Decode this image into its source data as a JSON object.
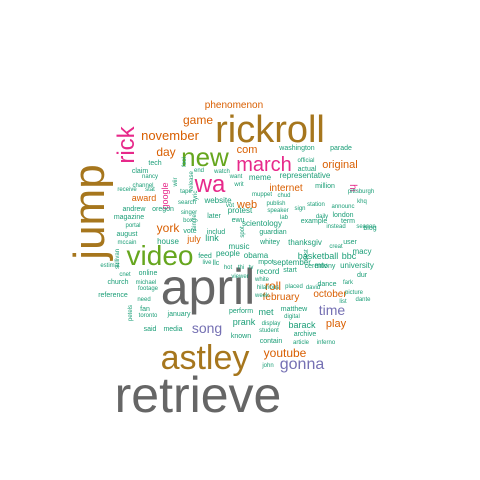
{
  "palette": {
    "gray": "#666666",
    "gold": "#a6761d",
    "green": "#66a61e",
    "magenta": "#e7298a",
    "orange": "#d95f02",
    "purple": "#7570b3",
    "teal": "#1b9e77"
  },
  "words": [
    {
      "text": "retrieve",
      "color": "gray"
    },
    {
      "text": "april",
      "color": "gray"
    },
    {
      "text": "astley",
      "color": "gold"
    },
    {
      "text": "jump",
      "color": "gold"
    },
    {
      "text": "rickroll",
      "color": "gold"
    },
    {
      "text": "video",
      "color": "green"
    },
    {
      "text": "new",
      "color": "green"
    },
    {
      "text": "wa",
      "color": "magenta"
    },
    {
      "text": "rick",
      "color": "magenta"
    },
    {
      "text": "march",
      "color": "magenta"
    },
    {
      "text": "gonna",
      "color": "purple"
    },
    {
      "text": "song",
      "color": "purple"
    },
    {
      "text": "time",
      "color": "purple"
    },
    {
      "text": "youtube",
      "color": "orange"
    },
    {
      "text": "november",
      "color": "orange"
    },
    {
      "text": "game",
      "color": "orange"
    },
    {
      "text": "phenomenon",
      "color": "orange"
    },
    {
      "text": "day",
      "color": "orange"
    },
    {
      "text": "york",
      "color": "orange"
    },
    {
      "text": "roll",
      "color": "orange"
    },
    {
      "text": "internet",
      "color": "orange"
    },
    {
      "text": "com",
      "color": "orange"
    },
    {
      "text": "web",
      "color": "orange"
    },
    {
      "text": "original",
      "color": "orange"
    },
    {
      "text": "february",
      "color": "orange"
    },
    {
      "text": "october",
      "color": "orange"
    },
    {
      "text": "play",
      "color": "orange"
    },
    {
      "text": "july",
      "color": "orange"
    },
    {
      "text": "award",
      "color": "orange"
    },
    {
      "text": "google",
      "color": "magenta"
    },
    {
      "text": "hi",
      "color": "magenta"
    },
    {
      "text": "basketball",
      "color": "teal"
    },
    {
      "text": "bbc",
      "color": "teal"
    },
    {
      "text": "barack",
      "color": "teal"
    },
    {
      "text": "obama",
      "color": "teal"
    },
    {
      "text": "music",
      "color": "teal"
    },
    {
      "text": "meme",
      "color": "teal"
    },
    {
      "text": "website",
      "color": "teal"
    },
    {
      "text": "house",
      "color": "teal"
    },
    {
      "text": "link",
      "color": "teal"
    },
    {
      "text": "prank",
      "color": "teal"
    },
    {
      "text": "september",
      "color": "teal"
    },
    {
      "text": "met",
      "color": "teal"
    },
    {
      "text": "record",
      "color": "teal"
    },
    {
      "text": "mtv",
      "color": "teal"
    },
    {
      "text": "university",
      "color": "teal"
    },
    {
      "text": "scientology",
      "color": "teal"
    },
    {
      "text": "protest",
      "color": "teal"
    },
    {
      "text": "guardian",
      "color": "teal"
    },
    {
      "text": "people",
      "color": "teal"
    },
    {
      "text": "thanksgiv",
      "color": "teal"
    },
    {
      "text": "ceremony",
      "color": "teal"
    },
    {
      "text": "macy",
      "color": "teal"
    },
    {
      "text": "representative",
      "color": "teal"
    },
    {
      "text": "washington",
      "color": "teal"
    },
    {
      "text": "parade",
      "color": "teal"
    },
    {
      "text": "actual",
      "color": "teal"
    },
    {
      "text": "million",
      "color": "teal"
    },
    {
      "text": "example",
      "color": "teal"
    },
    {
      "text": "term",
      "color": "teal"
    },
    {
      "text": "user",
      "color": "teal"
    },
    {
      "text": "blog",
      "color": "teal"
    },
    {
      "text": "dance",
      "color": "teal"
    },
    {
      "text": "matthew",
      "color": "teal"
    },
    {
      "text": "archive",
      "color": "teal"
    },
    {
      "text": "contain",
      "color": "teal"
    },
    {
      "text": "article",
      "color": "teal"
    },
    {
      "text": "inferno",
      "color": "teal"
    },
    {
      "text": "perform",
      "color": "teal"
    },
    {
      "text": "known",
      "color": "teal"
    },
    {
      "text": "media",
      "color": "teal"
    },
    {
      "text": "said",
      "color": "teal"
    },
    {
      "text": "january",
      "color": "teal"
    },
    {
      "text": "toronto",
      "color": "teal"
    },
    {
      "text": "footage",
      "color": "teal"
    },
    {
      "text": "church",
      "color": "teal"
    },
    {
      "text": "michael",
      "color": "teal"
    },
    {
      "text": "online",
      "color": "teal"
    },
    {
      "text": "reference",
      "color": "teal"
    },
    {
      "text": "fan",
      "color": "teal"
    },
    {
      "text": "cnet",
      "color": "teal"
    },
    {
      "text": "estimat",
      "color": "teal"
    },
    {
      "text": "magazine",
      "color": "teal"
    },
    {
      "text": "august",
      "color": "teal"
    },
    {
      "text": "andrew",
      "color": "teal"
    },
    {
      "text": "oregon",
      "color": "teal"
    },
    {
      "text": "mccain",
      "color": "teal"
    },
    {
      "text": "vote",
      "color": "teal"
    },
    {
      "text": "includ",
      "color": "teal"
    },
    {
      "text": "feed",
      "color": "teal"
    },
    {
      "text": "tech",
      "color": "teal"
    },
    {
      "text": "claim",
      "color": "teal"
    },
    {
      "text": "nancy",
      "color": "teal"
    },
    {
      "text": "channel",
      "color": "teal"
    },
    {
      "text": "receive",
      "color": "teal"
    },
    {
      "text": "stat",
      "color": "teal"
    },
    {
      "text": "portal",
      "color": "teal"
    },
    {
      "text": "search",
      "color": "teal"
    },
    {
      "text": "singer",
      "color": "teal"
    },
    {
      "text": "box",
      "color": "teal"
    },
    {
      "text": "later",
      "color": "teal"
    },
    {
      "text": "ewu",
      "color": "teal"
    },
    {
      "text": "london",
      "color": "teal"
    },
    {
      "text": "station",
      "color": "teal"
    },
    {
      "text": "announc",
      "color": "teal"
    },
    {
      "text": "daily",
      "color": "teal"
    },
    {
      "text": "instead",
      "color": "teal"
    },
    {
      "text": "season",
      "color": "teal"
    },
    {
      "text": "creat",
      "color": "teal"
    },
    {
      "text": "picture",
      "color": "teal"
    },
    {
      "text": "dante",
      "color": "teal"
    },
    {
      "text": "list",
      "color": "teal"
    },
    {
      "text": "dur",
      "color": "teal"
    },
    {
      "text": "whitey",
      "color": "teal"
    },
    {
      "text": "week",
      "color": "teal"
    },
    {
      "text": "start",
      "color": "teal"
    },
    {
      "text": "hilarious",
      "color": "teal"
    },
    {
      "text": "placed",
      "color": "teal"
    },
    {
      "text": "david",
      "color": "teal"
    },
    {
      "text": "digital",
      "color": "teal"
    },
    {
      "text": "display",
      "color": "teal"
    },
    {
      "text": "student",
      "color": "teal"
    },
    {
      "text": "john",
      "color": "teal"
    },
    {
      "text": "viewer",
      "color": "teal"
    },
    {
      "text": "need",
      "color": "teal"
    },
    {
      "text": "petels",
      "color": "teal"
    },
    {
      "text": "sullivan",
      "color": "teal"
    },
    {
      "text": "pittsburgh",
      "color": "teal"
    },
    {
      "text": "khq",
      "color": "teal"
    },
    {
      "text": "official",
      "color": "teal"
    },
    {
      "text": "chud",
      "color": "teal"
    },
    {
      "text": "report",
      "color": "teal"
    },
    {
      "text": "publish",
      "color": "teal"
    },
    {
      "text": "speaker",
      "color": "teal"
    },
    {
      "text": "sign",
      "color": "teal"
    },
    {
      "text": "muppet",
      "color": "teal"
    },
    {
      "text": "writ",
      "color": "teal"
    },
    {
      "text": "want",
      "color": "teal"
    },
    {
      "text": "watch",
      "color": "teal"
    },
    {
      "text": "end",
      "color": "teal"
    },
    {
      "text": "lab",
      "color": "teal"
    },
    {
      "text": "tape",
      "color": "teal"
    },
    {
      "text": "lyric",
      "color": "teal"
    },
    {
      "text": "wiir",
      "color": "teal"
    },
    {
      "text": "fool",
      "color": "teal"
    },
    {
      "text": "single",
      "color": "teal"
    },
    {
      "text": "live",
      "color": "teal"
    },
    {
      "text": "vot",
      "color": "teal"
    },
    {
      "text": "hot",
      "color": "teal"
    },
    {
      "text": "thi",
      "color": "teal"
    },
    {
      "text": "tv",
      "color": "teal"
    },
    {
      "text": "llc",
      "color": "teal"
    },
    {
      "text": "mpot",
      "color": "teal"
    },
    {
      "text": "white",
      "color": "teal"
    },
    {
      "text": "best",
      "color": "teal"
    },
    {
      "text": "fark",
      "color": "teal"
    },
    {
      "text": "release",
      "color": "teal"
    },
    {
      "text": "spot",
      "color": "teal"
    }
  ]
}
